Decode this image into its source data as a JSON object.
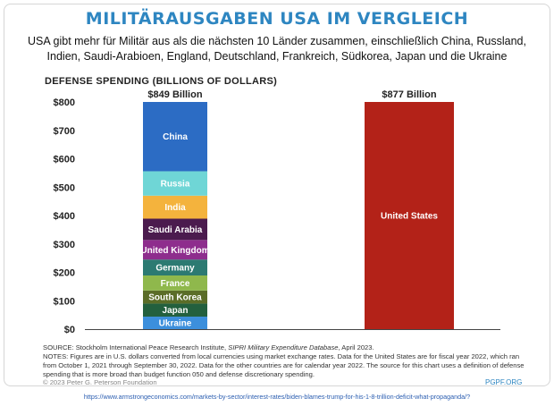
{
  "header": {
    "title": "MILITÄRAUSGABEN USA IM VERGLEICH",
    "subtitle": "USA gibt mehr für Militär aus als die nächsten 10 Länder zusammen, einschließlich China, Russland, Indien, Saudi-Arabioen, England, Deutschland, Frankreich, Südkorea, Japan und die Ukraine"
  },
  "chart_data": {
    "type": "bar",
    "title": "DEFENSE SPENDING (BILLIONS OF DOLLARS)",
    "ylim": [
      0,
      800
    ],
    "yticks": [
      "$0",
      "$100",
      "$200",
      "$300",
      "$400",
      "$500",
      "$600",
      "$700",
      "$800"
    ],
    "grid": false,
    "stacked_bar": {
      "total_label": "$849 Billion",
      "segments": [
        {
          "name": "Ukraine",
          "value": 44,
          "color": "#3c8fdc"
        },
        {
          "name": "Japan",
          "value": 46,
          "color": "#23603e"
        },
        {
          "name": "South Korea",
          "value": 46,
          "color": "#5b6d28"
        },
        {
          "name": "France",
          "value": 53,
          "color": "#8fb84c"
        },
        {
          "name": "Germany",
          "value": 56,
          "color": "#2c7a72"
        },
        {
          "name": "United Kingdom",
          "value": 69,
          "color": "#8e2d8d"
        },
        {
          "name": "Saudi Arabia",
          "value": 75,
          "color": "#4b1b4e"
        },
        {
          "name": "India",
          "value": 81,
          "color": "#f4b33d"
        },
        {
          "name": "Russia",
          "value": 86,
          "color": "#6fd6d6"
        },
        {
          "name": "China",
          "value": 293,
          "color": "#2c6cc4"
        }
      ]
    },
    "single_bar": {
      "name": "United States",
      "value": 877,
      "total_label": "$877 Billion",
      "color": "#b32218"
    }
  },
  "footer": {
    "source_prefix": "SOURCE: Stockholm International Peace Research Institute, ",
    "source_italic": "SIPRI Military Expenditure Database",
    "source_suffix": ", April 2023.",
    "notes": "NOTES: Figures are in U.S. dollars converted from local currencies using market exchange rates. Data for the United States are for fiscal year 2022, which ran from October 1, 2021 through September 30, 2022. Data for the other countries are for calendar year 2022. The source for this chart uses a definition of defense spending that is more broad than budget function 050 and defense discretionary spending.",
    "copyright": "© 2023 Peter G. Peterson Foundation",
    "brand": "PGPF.ORG",
    "url": "https://www.armstrongeconomics.com/markets-by-sector/interest-rates/biden-blames-trump-for-his-1-8-trillion-deficit-what-propaganda/?"
  }
}
